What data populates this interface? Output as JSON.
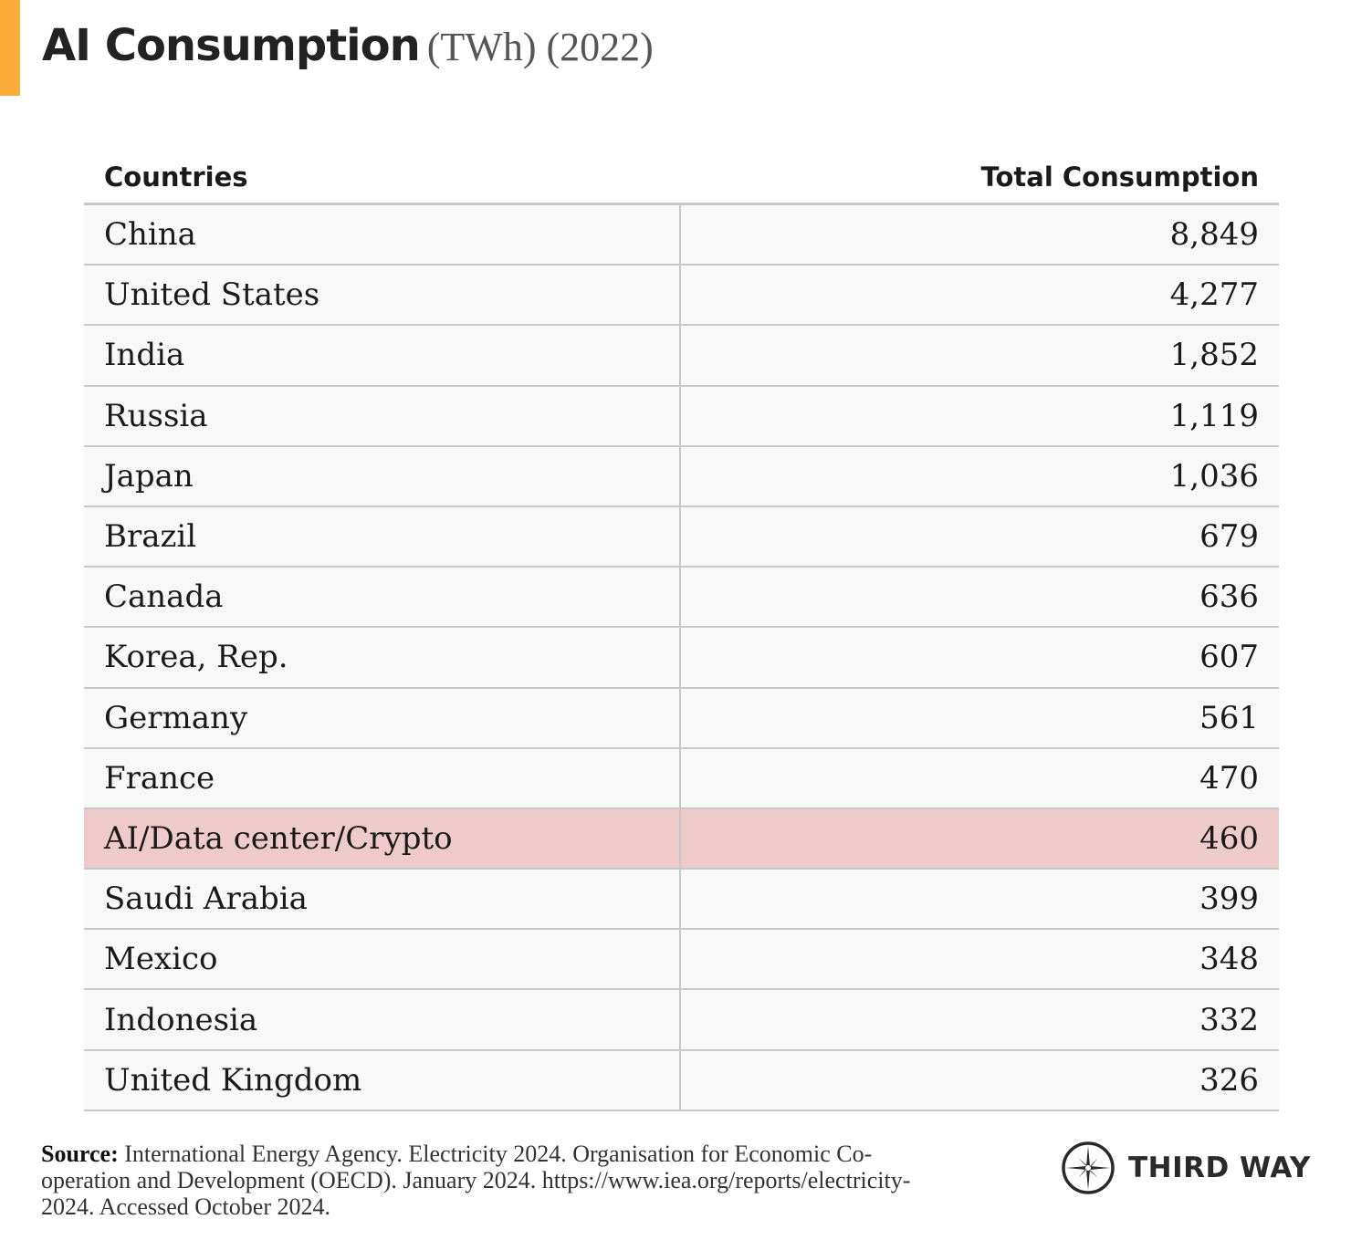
{
  "title": {
    "main": "AI Consumption",
    "sub": "(TWh) (2022)"
  },
  "colors": {
    "accent": "#fbad3a",
    "highlight_row": "#efcaca",
    "row_bg": "#f8f8f8",
    "grid": "#c8c8c8"
  },
  "chart_data": {
    "type": "table",
    "columns": [
      "Countries",
      "Total Consumption"
    ],
    "rows": [
      {
        "country": "China",
        "value": "8,849"
      },
      {
        "country": "United States",
        "value": "4,277"
      },
      {
        "country": "India",
        "value": "1,852"
      },
      {
        "country": "Russia",
        "value": "1,119"
      },
      {
        "country": "Japan",
        "value": "1,036"
      },
      {
        "country": "Brazil",
        "value": "679"
      },
      {
        "country": "Canada",
        "value": "636"
      },
      {
        "country": "Korea, Rep.",
        "value": "607"
      },
      {
        "country": "Germany",
        "value": "561"
      },
      {
        "country": "France",
        "value": "470"
      },
      {
        "country": "AI/Data center/Crypto",
        "value": "460",
        "highlighted": true
      },
      {
        "country": "Saudi Arabia",
        "value": "399"
      },
      {
        "country": "Mexico",
        "value": "348"
      },
      {
        "country": "Indonesia",
        "value": "332"
      },
      {
        "country": "United Kingdom",
        "value": "326"
      }
    ]
  },
  "source": {
    "label": "Source:",
    "text": "International Energy Agency. Electricity 2024. Organisation for Economic Co-operation and Development (OECD). January 2024. https://www.iea.org/reports/electricity-2024. Accessed October 2024."
  },
  "logo": {
    "text": "THIRD WAY",
    "icon": "compass-star-icon"
  }
}
